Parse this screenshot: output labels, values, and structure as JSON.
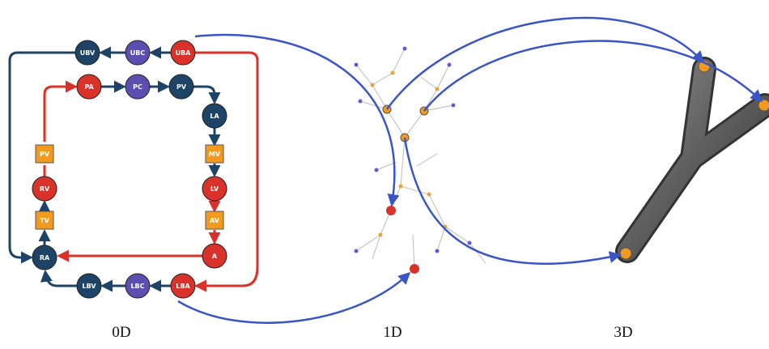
{
  "nodes": [
    {
      "label": "UBV"
    },
    {
      "label": "UBC"
    },
    {
      "label": "UBA"
    },
    {
      "label": "PA"
    },
    {
      "label": "PC"
    },
    {
      "label": "PV"
    },
    {
      "label": "LA"
    },
    {
      "label": "MV"
    },
    {
      "label": "LV"
    },
    {
      "label": "AV"
    },
    {
      "label": "A"
    },
    {
      "label": "RA"
    },
    {
      "label": "TV"
    },
    {
      "label": "RV"
    },
    {
      "label": "PV"
    },
    {
      "label": "LBV"
    },
    {
      "label": "LBC"
    },
    {
      "label": "LBA"
    }
  ],
  "captions": [
    "0D",
    "1D",
    "3D"
  ]
}
